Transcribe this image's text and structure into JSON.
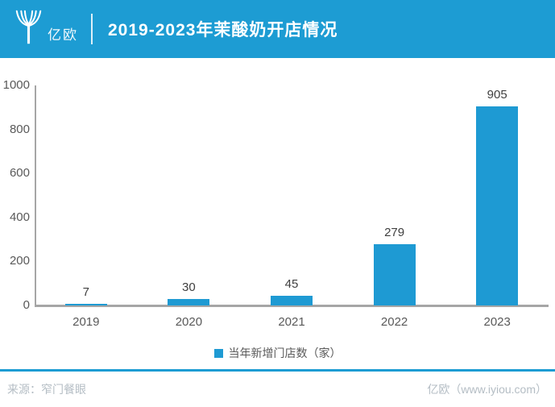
{
  "header": {
    "brand": "亿欧",
    "title": "2019-2023年茉酸奶开店情况",
    "accent_color": "#1d9cd3"
  },
  "chart_data": {
    "type": "bar",
    "categories": [
      "2019",
      "2020",
      "2021",
      "2022",
      "2023"
    ],
    "values": [
      7,
      30,
      45,
      279,
      905
    ],
    "series_name": "当年新增门店数（家）",
    "title": "2019-2023年茉酸奶开店情况",
    "xlabel": "",
    "ylabel": "",
    "ylim": [
      0,
      1000
    ],
    "y_ticks": [
      0,
      200,
      400,
      600,
      800,
      1000
    ],
    "grid": false,
    "legend_position": "bottom",
    "bar_color": "#1e9ad3",
    "axis_color": "#a6a6a6",
    "value_label_color": "#404040",
    "tick_label_color": "#595959"
  },
  "footer": {
    "source": "来源：窄门餐眼",
    "credit": "亿欧（www.iyiou.com）"
  },
  "icons": {
    "logo": "yiou-sheaf-logo"
  }
}
